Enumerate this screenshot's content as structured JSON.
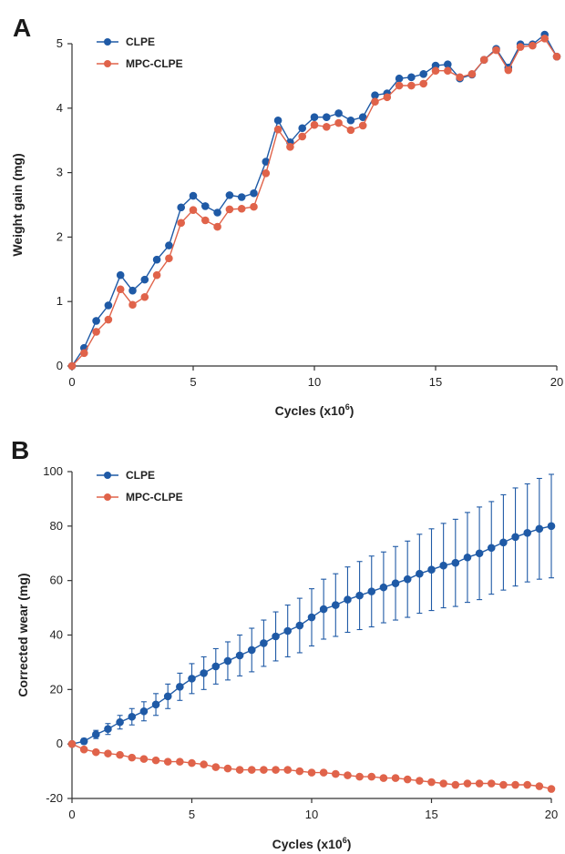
{
  "chart_data": [
    {
      "panel": "A",
      "type": "line",
      "xlabel_main": "Cycles (x10",
      "xlabel_sup": "6",
      "xlabel_end": ")",
      "ylabel": "Weight gain  (mg)",
      "xlim": [
        0,
        20
      ],
      "ylim": [
        0,
        5
      ],
      "xticks": [
        "0",
        "5",
        "10",
        "15",
        "20"
      ],
      "yticks": [
        "0",
        "1",
        "2",
        "3",
        "4",
        "5"
      ],
      "legend_position": "top-left",
      "grid": false,
      "x": [
        0,
        0.5,
        1,
        1.5,
        2,
        2.5,
        3,
        3.5,
        4,
        4.5,
        5,
        5.5,
        6,
        6.5,
        7,
        7.5,
        8,
        8.5,
        9,
        9.5,
        10,
        10.5,
        11,
        11.5,
        12,
        12.5,
        13,
        13.5,
        14,
        14.5,
        15,
        15.5,
        16,
        16.5,
        17,
        17.5,
        18,
        18.5,
        19,
        19.5,
        20
      ],
      "series": [
        {
          "name": "CLPE",
          "color": "#1f5aa6",
          "values": [
            0,
            0.28,
            0.7,
            0.94,
            1.41,
            1.17,
            1.34,
            1.65,
            1.87,
            2.46,
            2.64,
            2.48,
            2.38,
            2.65,
            2.62,
            2.68,
            3.17,
            3.81,
            3.47,
            3.69,
            3.86,
            3.86,
            3.92,
            3.81,
            3.86,
            4.2,
            4.23,
            4.46,
            4.48,
            4.53,
            4.66,
            4.68,
            4.46,
            4.52,
            4.75,
            4.92,
            4.63,
            4.99,
            4.99,
            5.14,
            4.8
          ]
        },
        {
          "name": "MPC-CLPE",
          "color": "#e0634a",
          "values": [
            0,
            0.2,
            0.53,
            0.72,
            1.19,
            0.95,
            1.07,
            1.41,
            1.67,
            2.22,
            2.42,
            2.26,
            2.16,
            2.43,
            2.44,
            2.47,
            2.99,
            3.67,
            3.4,
            3.56,
            3.74,
            3.71,
            3.77,
            3.66,
            3.73,
            4.1,
            4.17,
            4.35,
            4.35,
            4.38,
            4.58,
            4.58,
            4.48,
            4.53,
            4.75,
            4.9,
            4.59,
            4.95,
            4.97,
            5.08,
            4.8
          ]
        }
      ]
    },
    {
      "panel": "B",
      "type": "line",
      "xlabel_main": "Cycles (x10",
      "xlabel_sup": "6",
      "xlabel_end": ")",
      "ylabel": "Corrected wear  (mg)",
      "xlim": [
        0,
        20
      ],
      "ylim": [
        -20,
        100
      ],
      "xticks": [
        "0",
        "5",
        "10",
        "15",
        "20"
      ],
      "yticks": [
        "-20",
        "0",
        "20",
        "40",
        "60",
        "80",
        "100"
      ],
      "legend_position": "top-left",
      "grid": false,
      "x": [
        0,
        0.5,
        1,
        1.5,
        2,
        2.5,
        3,
        3.5,
        4,
        4.5,
        5,
        5.5,
        6,
        6.5,
        7,
        7.5,
        8,
        8.5,
        9,
        9.5,
        10,
        10.5,
        11,
        11.5,
        12,
        12.5,
        13,
        13.5,
        14,
        14.5,
        15,
        15.5,
        16,
        16.5,
        17,
        17.5,
        18,
        18.5,
        19,
        19.5,
        20
      ],
      "series": [
        {
          "name": "CLPE",
          "color": "#1f5aa6",
          "values": [
            0,
            1,
            3.5,
            5.5,
            8,
            10,
            12,
            14.5,
            17.5,
            21,
            24,
            26,
            28.5,
            30.5,
            32.5,
            34.5,
            37,
            39.5,
            41.5,
            43.5,
            46.5,
            49.5,
            51,
            53,
            54.5,
            56,
            57.5,
            59,
            60.5,
            62.5,
            64,
            65.5,
            66.5,
            68.5,
            70,
            72,
            74,
            76,
            77.5,
            79,
            80
          ],
          "error": [
            0,
            1,
            1.5,
            2,
            2.5,
            3,
            3.5,
            4,
            4.5,
            5,
            5.5,
            6,
            6.5,
            7,
            7.5,
            8,
            8.5,
            9,
            9.5,
            10,
            10.5,
            11,
            11.5,
            12,
            12.5,
            13,
            13,
            13.5,
            14,
            14.5,
            15,
            15.5,
            16,
            16.5,
            17,
            17,
            17.5,
            18,
            18,
            18.5,
            19
          ]
        },
        {
          "name": "MPC-CLPE",
          "color": "#e0634a",
          "values": [
            0,
            -2,
            -3,
            -3.5,
            -4,
            -5,
            -5.5,
            -6,
            -6.5,
            -6.5,
            -7,
            -7.5,
            -8.5,
            -9,
            -9.5,
            -9.5,
            -9.5,
            -9.5,
            -9.5,
            -10,
            -10.5,
            -10.5,
            -11,
            -11.5,
            -12,
            -12,
            -12.5,
            -12.5,
            -13,
            -13.5,
            -14,
            -14.5,
            -15,
            -14.5,
            -14.5,
            -14.5,
            -15,
            -15,
            -15,
            -15.5,
            -16.5
          ]
        }
      ]
    }
  ]
}
